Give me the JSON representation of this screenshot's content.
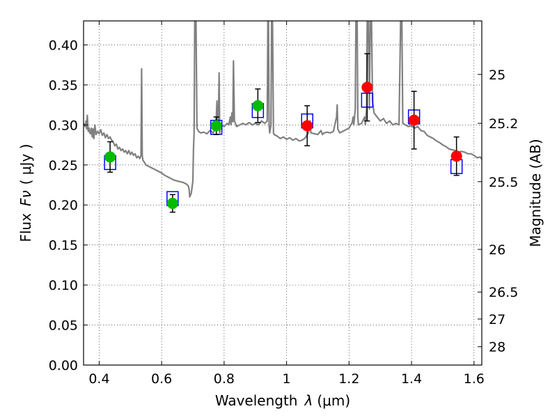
{
  "chart_data": {
    "type": "scatter",
    "title": "",
    "xlabel": "Wavelength",
    "xlabel_symbol": "λ",
    "xlabel_unit": "(μm)",
    "ylabel": "Flux",
    "ylabel_symbol": "Fν",
    "ylabel_unit": "( μJy )",
    "y2label": "Magnitude (AB)",
    "xlim": [
      0.35,
      1.625
    ],
    "ylim": [
      0.0,
      0.43
    ],
    "grid": true,
    "xticks": [
      {
        "value": 0.4,
        "label": "0.4"
      },
      {
        "value": 0.6,
        "label": "0.6"
      },
      {
        "value": 0.8,
        "label": "0.8"
      },
      {
        "value": 1.0,
        "label": "1"
      },
      {
        "value": 1.2,
        "label": "1.2"
      },
      {
        "value": 1.4,
        "label": "1.4"
      },
      {
        "value": 1.6,
        "label": "1.6"
      }
    ],
    "yticks": [
      {
        "value": 0.0,
        "label": "0.00"
      },
      {
        "value": 0.05,
        "label": "0.05"
      },
      {
        "value": 0.1,
        "label": "0.10"
      },
      {
        "value": 0.15,
        "label": "0.15"
      },
      {
        "value": 0.2,
        "label": "0.20"
      },
      {
        "value": 0.25,
        "label": "0.25"
      },
      {
        "value": 0.3,
        "label": "0.30"
      },
      {
        "value": 0.35,
        "label": "0.35"
      },
      {
        "value": 0.4,
        "label": "0.40"
      }
    ],
    "y2ticks": [
      {
        "flux": 0.3631,
        "label": "25"
      },
      {
        "flux": 0.302,
        "label": "25.2"
      },
      {
        "flux": 0.2291,
        "label": "25.5"
      },
      {
        "flux": 0.1445,
        "label": "26"
      },
      {
        "flux": 0.0912,
        "label": "26.5"
      },
      {
        "flux": 0.0575,
        "label": "27"
      },
      {
        "flux": 0.0229,
        "label": "28"
      }
    ],
    "series": [
      {
        "kind": "line",
        "color": "#808080",
        "points": [
          [
            0.35,
            0.302
          ],
          [
            0.355,
            0.298
          ],
          [
            0.358,
            0.305
          ],
          [
            0.36,
            0.295
          ],
          [
            0.362,
            0.312
          ],
          [
            0.365,
            0.292
          ],
          [
            0.368,
            0.296
          ],
          [
            0.37,
            0.29
          ],
          [
            0.373,
            0.289
          ],
          [
            0.375,
            0.296
          ],
          [
            0.378,
            0.285
          ],
          [
            0.38,
            0.295
          ],
          [
            0.383,
            0.283
          ],
          [
            0.386,
            0.3
          ],
          [
            0.39,
            0.288
          ],
          [
            0.395,
            0.292
          ],
          [
            0.4,
            0.289
          ],
          [
            0.405,
            0.294
          ],
          [
            0.41,
            0.287
          ],
          [
            0.415,
            0.29
          ],
          [
            0.42,
            0.284
          ],
          [
            0.425,
            0.288
          ],
          [
            0.43,
            0.283
          ],
          [
            0.435,
            0.285
          ],
          [
            0.44,
            0.281
          ],
          [
            0.445,
            0.279
          ],
          [
            0.45,
            0.274
          ],
          [
            0.455,
            0.276
          ],
          [
            0.46,
            0.27
          ],
          [
            0.465,
            0.272
          ],
          [
            0.47,
            0.268
          ],
          [
            0.475,
            0.27
          ],
          [
            0.48,
            0.266
          ],
          [
            0.485,
            0.268
          ],
          [
            0.49,
            0.264
          ],
          [
            0.495,
            0.268
          ],
          [
            0.5,
            0.263
          ],
          [
            0.505,
            0.266
          ],
          [
            0.51,
            0.262
          ],
          [
            0.515,
            0.264
          ],
          [
            0.52,
            0.259
          ],
          [
            0.525,
            0.261
          ],
          [
            0.53,
            0.258
          ],
          [
            0.534,
            0.262
          ],
          [
            0.536,
            0.37
          ],
          [
            0.538,
            0.262
          ],
          [
            0.54,
            0.256
          ],
          [
            0.545,
            0.253
          ],
          [
            0.55,
            0.25
          ],
          [
            0.56,
            0.248
          ],
          [
            0.57,
            0.246
          ],
          [
            0.58,
            0.244
          ],
          [
            0.59,
            0.242
          ],
          [
            0.6,
            0.24
          ],
          [
            0.61,
            0.237
          ],
          [
            0.62,
            0.235
          ],
          [
            0.63,
            0.233
          ],
          [
            0.64,
            0.231
          ],
          [
            0.65,
            0.23
          ],
          [
            0.66,
            0.229
          ],
          [
            0.67,
            0.228
          ],
          [
            0.68,
            0.226
          ],
          [
            0.685,
            0.224
          ],
          [
            0.688,
            0.22
          ],
          [
            0.69,
            0.21
          ],
          [
            0.695,
            0.215
          ],
          [
            0.7,
            0.23
          ],
          [
            0.702,
            0.27
          ],
          [
            0.704,
            0.29
          ],
          [
            0.706,
            0.43
          ],
          [
            0.71,
            0.43
          ],
          [
            0.713,
            0.296
          ],
          [
            0.718,
            0.292
          ],
          [
            0.725,
            0.29
          ],
          [
            0.735,
            0.291
          ],
          [
            0.745,
            0.289
          ],
          [
            0.755,
            0.293
          ],
          [
            0.765,
            0.29
          ],
          [
            0.77,
            0.294
          ],
          [
            0.775,
            0.31
          ],
          [
            0.777,
            0.33
          ],
          [
            0.779,
            0.3
          ],
          [
            0.782,
            0.31
          ],
          [
            0.784,
            0.365
          ],
          [
            0.786,
            0.29
          ],
          [
            0.79,
            0.3
          ],
          [
            0.8,
            0.298
          ],
          [
            0.81,
            0.302
          ],
          [
            0.815,
            0.3
          ],
          [
            0.82,
            0.31
          ],
          [
            0.822,
            0.3
          ],
          [
            0.825,
            0.315
          ],
          [
            0.828,
            0.304
          ],
          [
            0.83,
            0.38
          ],
          [
            0.833,
            0.305
          ],
          [
            0.84,
            0.298
          ],
          [
            0.85,
            0.3
          ],
          [
            0.86,
            0.302
          ],
          [
            0.87,
            0.3
          ],
          [
            0.88,
            0.303
          ],
          [
            0.89,
            0.3
          ],
          [
            0.9,
            0.302
          ],
          [
            0.91,
            0.3
          ],
          [
            0.92,
            0.305
          ],
          [
            0.93,
            0.302
          ],
          [
            0.938,
            0.305
          ],
          [
            0.94,
            0.43
          ],
          [
            0.942,
            0.43
          ],
          [
            0.944,
            0.3
          ],
          [
            0.946,
            0.29
          ],
          [
            0.95,
            0.3
          ],
          [
            0.952,
            0.43
          ],
          [
            0.955,
            0.43
          ],
          [
            0.958,
            0.29
          ],
          [
            0.96,
            0.288
          ],
          [
            0.97,
            0.286
          ],
          [
            0.98,
            0.283
          ],
          [
            0.99,
            0.285
          ],
          [
            1.0,
            0.282
          ],
          [
            1.01,
            0.284
          ],
          [
            1.02,
            0.281
          ],
          [
            1.03,
            0.283
          ],
          [
            1.04,
            0.28
          ],
          [
            1.05,
            0.281
          ],
          [
            1.06,
            0.284
          ],
          [
            1.07,
            0.29
          ],
          [
            1.075,
            0.305
          ],
          [
            1.078,
            0.29
          ],
          [
            1.09,
            0.289
          ],
          [
            1.1,
            0.288
          ],
          [
            1.11,
            0.293
          ],
          [
            1.115,
            0.288
          ],
          [
            1.12,
            0.29
          ],
          [
            1.13,
            0.291
          ],
          [
            1.14,
            0.29
          ],
          [
            1.15,
            0.292
          ],
          [
            1.16,
            0.31
          ],
          [
            1.162,
            0.325
          ],
          [
            1.164,
            0.295
          ],
          [
            1.17,
            0.29
          ],
          [
            1.18,
            0.292
          ],
          [
            1.19,
            0.294
          ],
          [
            1.2,
            0.296
          ],
          [
            1.21,
            0.303
          ],
          [
            1.213,
            0.31
          ],
          [
            1.215,
            0.3
          ],
          [
            1.22,
            0.32
          ],
          [
            1.222,
            0.43
          ],
          [
            1.226,
            0.43
          ],
          [
            1.228,
            0.31
          ],
          [
            1.23,
            0.3
          ],
          [
            1.24,
            0.302
          ],
          [
            1.25,
            0.31
          ],
          [
            1.252,
            0.3
          ],
          [
            1.256,
            0.32
          ],
          [
            1.258,
            0.43
          ],
          [
            1.262,
            0.43
          ],
          [
            1.265,
            0.32
          ],
          [
            1.268,
            0.43
          ],
          [
            1.272,
            0.43
          ],
          [
            1.275,
            0.33
          ],
          [
            1.28,
            0.315
          ],
          [
            1.29,
            0.31
          ],
          [
            1.3,
            0.305
          ],
          [
            1.31,
            0.308
          ],
          [
            1.32,
            0.302
          ],
          [
            1.33,
            0.305
          ],
          [
            1.34,
            0.3
          ],
          [
            1.35,
            0.302
          ],
          [
            1.36,
            0.3
          ],
          [
            1.365,
            0.43
          ],
          [
            1.369,
            0.43
          ],
          [
            1.372,
            0.302
          ],
          [
            1.38,
            0.3
          ],
          [
            1.39,
            0.298
          ],
          [
            1.4,
            0.299
          ],
          [
            1.41,
            0.296
          ],
          [
            1.42,
            0.298
          ],
          [
            1.43,
            0.293
          ],
          [
            1.44,
            0.292
          ],
          [
            1.45,
            0.287
          ],
          [
            1.46,
            0.285
          ],
          [
            1.47,
            0.283
          ],
          [
            1.48,
            0.28
          ],
          [
            1.49,
            0.278
          ],
          [
            1.5,
            0.275
          ],
          [
            1.51,
            0.273
          ],
          [
            1.52,
            0.27
          ],
          [
            1.53,
            0.269
          ],
          [
            1.54,
            0.268
          ],
          [
            1.55,
            0.266
          ],
          [
            1.56,
            0.267
          ],
          [
            1.57,
            0.266
          ],
          [
            1.58,
            0.264
          ],
          [
            1.59,
            0.264
          ],
          [
            1.6,
            0.262
          ],
          [
            1.61,
            0.259
          ],
          [
            1.62,
            0.26
          ],
          [
            1.625,
            0.257
          ]
        ]
      },
      {
        "kind": "model-boxes",
        "color": "#0000ff",
        "x": [
          0.435,
          0.635,
          0.775,
          0.908,
          1.066,
          1.258,
          1.408,
          1.544
        ],
        "y": [
          0.253,
          0.208,
          0.297,
          0.318,
          0.305,
          0.331,
          0.31,
          0.248
        ]
      },
      {
        "kind": "points",
        "color": "#00bb00",
        "x": [
          0.435,
          0.635,
          0.775,
          0.908
        ],
        "y": [
          0.26,
          0.202,
          0.299,
          0.324
        ],
        "err": [
          0.019,
          0.011,
          0.011,
          0.021
        ]
      },
      {
        "kind": "points",
        "color": "#ff0000",
        "x": [
          1.066,
          1.258,
          1.408,
          1.544
        ],
        "y": [
          0.299,
          0.347,
          0.306,
          0.261
        ],
        "err": [
          0.025,
          0.042,
          0.036,
          0.024
        ]
      }
    ]
  }
}
